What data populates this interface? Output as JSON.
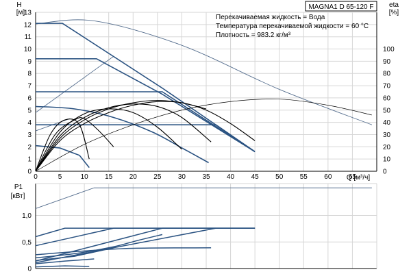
{
  "chart_data": [
    {
      "type": "line",
      "panel": "head",
      "model": "MAGNA1 D 65-120 F",
      "info": [
        "Перекачиваемая жидкость = Вода",
        "Температура перекачиваемой жидкости = 60 °C",
        "Плотность = 983.2 кг/м³"
      ],
      "xlabel": "Q [м³/ч]",
      "ylabel_main": "H",
      "ylabel_unit": "[м]",
      "y2label_main": "eta",
      "y2label_unit": "[%]",
      "xlim": [
        0,
        70
      ],
      "ylim": [
        0,
        13
      ],
      "y2lim": [
        0,
        130
      ],
      "x_ticks": [
        0,
        5,
        10,
        15,
        20,
        25,
        30,
        35,
        40,
        45,
        50,
        55,
        60,
        65,
        70
      ],
      "y_ticks": [
        0,
        1,
        2,
        3,
        4,
        5,
        6,
        7,
        8,
        9,
        10,
        11,
        12,
        13
      ],
      "y2_ticks": [
        0,
        10,
        20,
        30,
        40,
        50,
        60,
        70,
        80,
        90,
        100
      ],
      "grid": true,
      "colors": {
        "pump_curve": "#2b5382",
        "efficiency": "#000000",
        "limit_line": "#556e8e",
        "grid": "#d6d6d6"
      },
      "pump_curves": [
        {
          "points": [
            [
              0,
              12.1
            ],
            [
              5.5,
              12.1
            ],
            [
              26,
              6.8
            ],
            [
              45,
              1.6
            ]
          ]
        },
        {
          "points": [
            [
              0,
              9.2
            ],
            [
              12.5,
              9.2
            ],
            [
              26,
              6.3
            ],
            [
              45,
              1.6
            ]
          ]
        },
        {
          "points": [
            [
              0,
              6.5
            ],
            [
              26,
              6.5
            ],
            [
              45,
              1.6
            ]
          ]
        },
        {
          "points": [
            [
              0,
              3.8
            ],
            [
              37,
              3.8
            ],
            [
              45,
              1.6
            ]
          ]
        },
        {
          "points": [
            [
              0,
              5.3
            ],
            [
              8,
              5.1
            ],
            [
              16,
              4.4
            ],
            [
              24,
              3.2
            ],
            [
              30.5,
              1.8
            ],
            [
              35.5,
              0.7
            ]
          ]
        },
        {
          "points": [
            [
              0,
              2.1
            ],
            [
              5,
              1.9
            ],
            [
              9,
              1.3
            ],
            [
              11,
              0.3
            ]
          ]
        }
      ],
      "limit_lines": [
        {
          "points": [
            [
              0,
              12.05
            ],
            [
              12,
              12.3
            ],
            [
              30,
              10.3
            ],
            [
              50,
              6.7
            ],
            [
              69,
              3.8
            ]
          ]
        },
        {
          "points": [
            [
              0,
              4.8
            ],
            [
              16,
              9.4
            ]
          ]
        },
        {
          "points": [
            [
              0,
              3.3
            ],
            [
              7,
              4.3
            ]
          ]
        }
      ],
      "efficiency_curves": [
        {
          "points": [
            [
              0,
              0
            ],
            [
              5,
              25
            ],
            [
              10,
              39
            ],
            [
              15,
              48
            ],
            [
              20,
              54
            ],
            [
              25,
              57
            ],
            [
              30,
              56
            ],
            [
              35,
              50
            ],
            [
              40,
              39
            ],
            [
              45,
              25
            ]
          ]
        },
        {
          "points": [
            [
              0,
              0
            ],
            [
              5,
              27
            ],
            [
              10,
              42
            ],
            [
              15,
              51
            ],
            [
              20,
              56
            ],
            [
              25,
              58
            ],
            [
              30,
              56
            ],
            [
              35,
              51
            ]
          ]
        },
        {
          "points": [
            [
              0,
              0
            ],
            [
              5,
              29
            ],
            [
              10,
              44
            ],
            [
              15,
              52
            ],
            [
              20,
              55
            ],
            [
              25,
              53
            ],
            [
              30,
              44
            ],
            [
              36,
              24
            ]
          ]
        },
        {
          "points": [
            [
              0,
              0
            ],
            [
              5,
              32
            ],
            [
              10,
              47
            ],
            [
              15,
              51
            ],
            [
              20,
              48
            ],
            [
              25,
              36
            ],
            [
              30,
              18
            ]
          ]
        },
        {
          "points": [
            [
              0,
              0
            ],
            [
              4,
              30
            ],
            [
              8,
              42
            ],
            [
              10,
              43
            ],
            [
              13,
              33
            ],
            [
              16,
              20
            ]
          ]
        },
        {
          "points": [
            [
              0,
              0
            ],
            [
              3,
              30
            ],
            [
              6,
              42
            ],
            [
              9,
              38
            ],
            [
              11,
              10
            ]
          ]
        },
        {
          "points": [
            [
              0,
              0
            ],
            [
              10,
              22
            ],
            [
              20,
              38
            ],
            [
              30,
              50
            ],
            [
              40,
              57
            ],
            [
              50,
              59
            ],
            [
              60,
              54
            ],
            [
              69,
              46
            ]
          ],
          "thin": true
        }
      ]
    },
    {
      "type": "line",
      "panel": "power",
      "ylabel_main": "P1",
      "ylabel_unit": "[кВт]",
      "xlim": [
        0,
        70
      ],
      "ylim": [
        0,
        1.6
      ],
      "y_ticks": [
        0,
        0.5,
        1.0
      ],
      "y_tick_labels": [
        "0",
        "0,5",
        "1,0"
      ],
      "grid": true,
      "power_curves": [
        {
          "points": [
            [
              0,
              1.13
            ],
            [
              12,
              1.52
            ],
            [
              69,
              1.52
            ]
          ]
        },
        {
          "points": [
            [
              0,
              0.6
            ],
            [
              6,
              0.76
            ],
            [
              45,
              0.76
            ]
          ]
        },
        {
          "points": [
            [
              0,
              0.43
            ],
            [
              16,
              0.76
            ],
            [
              45,
              0.76
            ]
          ]
        },
        {
          "points": [
            [
              0,
              0.14
            ],
            [
              26,
              0.76
            ],
            [
              45,
              0.76
            ]
          ]
        },
        {
          "points": [
            [
              0,
              0.11
            ],
            [
              37,
              0.76
            ]
          ]
        },
        {
          "points": [
            [
              0,
              0.26
            ],
            [
              10,
              0.33
            ],
            [
              20,
              0.38
            ],
            [
              36,
              0.39
            ]
          ]
        },
        {
          "points": [
            [
              0,
              0.2
            ],
            [
              8,
              0.28
            ],
            [
              16,
              0.41
            ],
            [
              21,
              0.53
            ],
            [
              26,
              0.64
            ]
          ]
        },
        {
          "points": [
            [
              0,
              0.15
            ],
            [
              8,
              0.23
            ],
            [
              16,
              0.39
            ]
          ]
        },
        {
          "points": [
            [
              0,
              0.09
            ],
            [
              6,
              0.14
            ],
            [
              12,
              0.18
            ]
          ]
        },
        {
          "points": [
            [
              0,
              0.03
            ],
            [
              6,
              0.05
            ],
            [
              11,
              0.04
            ]
          ]
        }
      ]
    }
  ]
}
